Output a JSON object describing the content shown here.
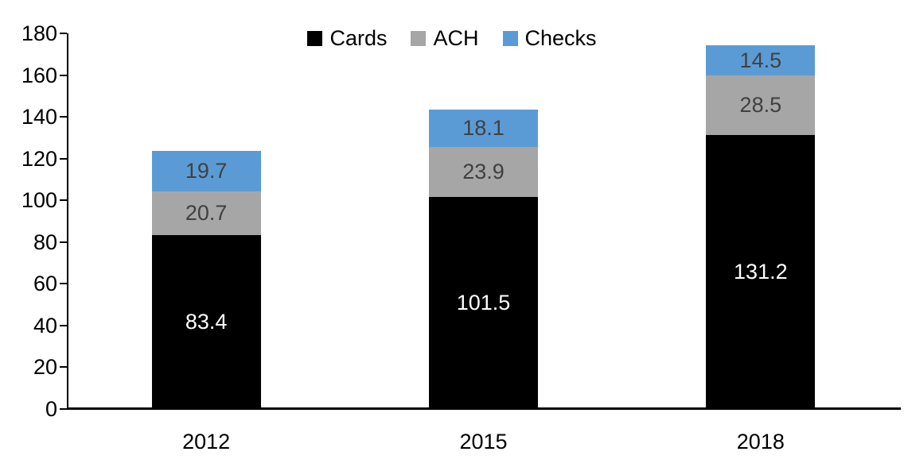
{
  "chart_data": {
    "type": "bar",
    "subtype": "stacked",
    "title": "",
    "xlabel": "",
    "ylabel": "",
    "categories": [
      "2012",
      "2015",
      "2018"
    ],
    "series": [
      {
        "name": "Cards",
        "color": "#000000",
        "label_color": "#ffffff",
        "values": [
          83.4,
          101.5,
          131.2
        ]
      },
      {
        "name": "ACH",
        "color": "#a6a6a6",
        "label_color": "#404040",
        "values": [
          20.7,
          23.9,
          28.5
        ]
      },
      {
        "name": "Checks",
        "color": "#5b9bd5",
        "label_color": "#404040",
        "values": [
          19.7,
          18.1,
          14.5
        ]
      }
    ],
    "ylim": [
      0,
      180
    ],
    "yticks": [
      0,
      20,
      40,
      60,
      80,
      100,
      120,
      140,
      160,
      180
    ],
    "grid": false,
    "legend_position": "top-center",
    "axis_color": "#000000",
    "background_color": "#ffffff"
  }
}
